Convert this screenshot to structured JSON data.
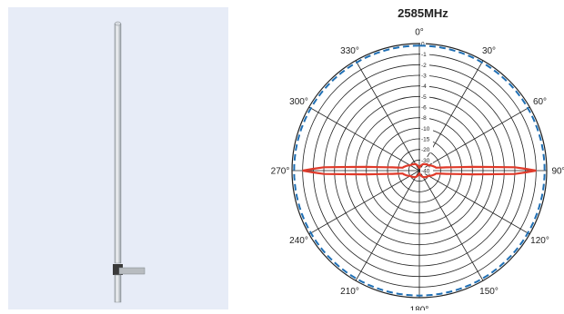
{
  "chart_data": {
    "type": "polar",
    "title": "2585MHz",
    "angle_labels": [
      "0°",
      "30°",
      "60°",
      "90°",
      "120°",
      "150°",
      "180°",
      "210°",
      "240°",
      "270°",
      "300°",
      "330°"
    ],
    "angle_values": [
      0,
      30,
      60,
      90,
      120,
      150,
      180,
      210,
      240,
      270,
      300,
      330
    ],
    "radial_ticks": [
      "0",
      "-1",
      "-2",
      "-3",
      "-4",
      "-5",
      "-6",
      "-8",
      "-10",
      "-15",
      "-20",
      "-30",
      "-40"
    ],
    "radial_values": [
      0,
      -1,
      -2,
      -3,
      -4,
      -5,
      -6,
      -8,
      -10,
      -15,
      -20,
      -30,
      -40
    ],
    "series": [
      {
        "style": "dashed",
        "color": "#1f6fb4",
        "angles": [
          0,
          30,
          60,
          90,
          120,
          150,
          180,
          210,
          240,
          270,
          300,
          330
        ],
        "values": [
          -0.2,
          -0.2,
          -0.2,
          -0.2,
          -0.2,
          -0.2,
          -0.2,
          -0.2,
          -0.2,
          -0.2,
          -0.2,
          -0.2
        ]
      },
      {
        "style": "solid",
        "color": "#e03a2a",
        "angles": [
          0,
          30,
          60,
          80,
          84,
          86,
          88,
          90,
          92,
          94,
          96,
          100,
          120,
          150,
          180,
          210,
          240,
          260,
          264,
          266,
          268,
          270,
          272,
          274,
          276,
          280,
          300,
          330
        ],
        "values": [
          -38,
          -33,
          -30,
          -24,
          -15,
          -8,
          -3,
          -1,
          -3,
          -8,
          -15,
          -24,
          -30,
          -33,
          -38,
          -33,
          -30,
          -24,
          -15,
          -8,
          -3,
          -1,
          -3,
          -8,
          -15,
          -24,
          -30,
          -33
        ]
      }
    ]
  },
  "photo": {
    "name": "fiberglass-omni-antenna"
  }
}
